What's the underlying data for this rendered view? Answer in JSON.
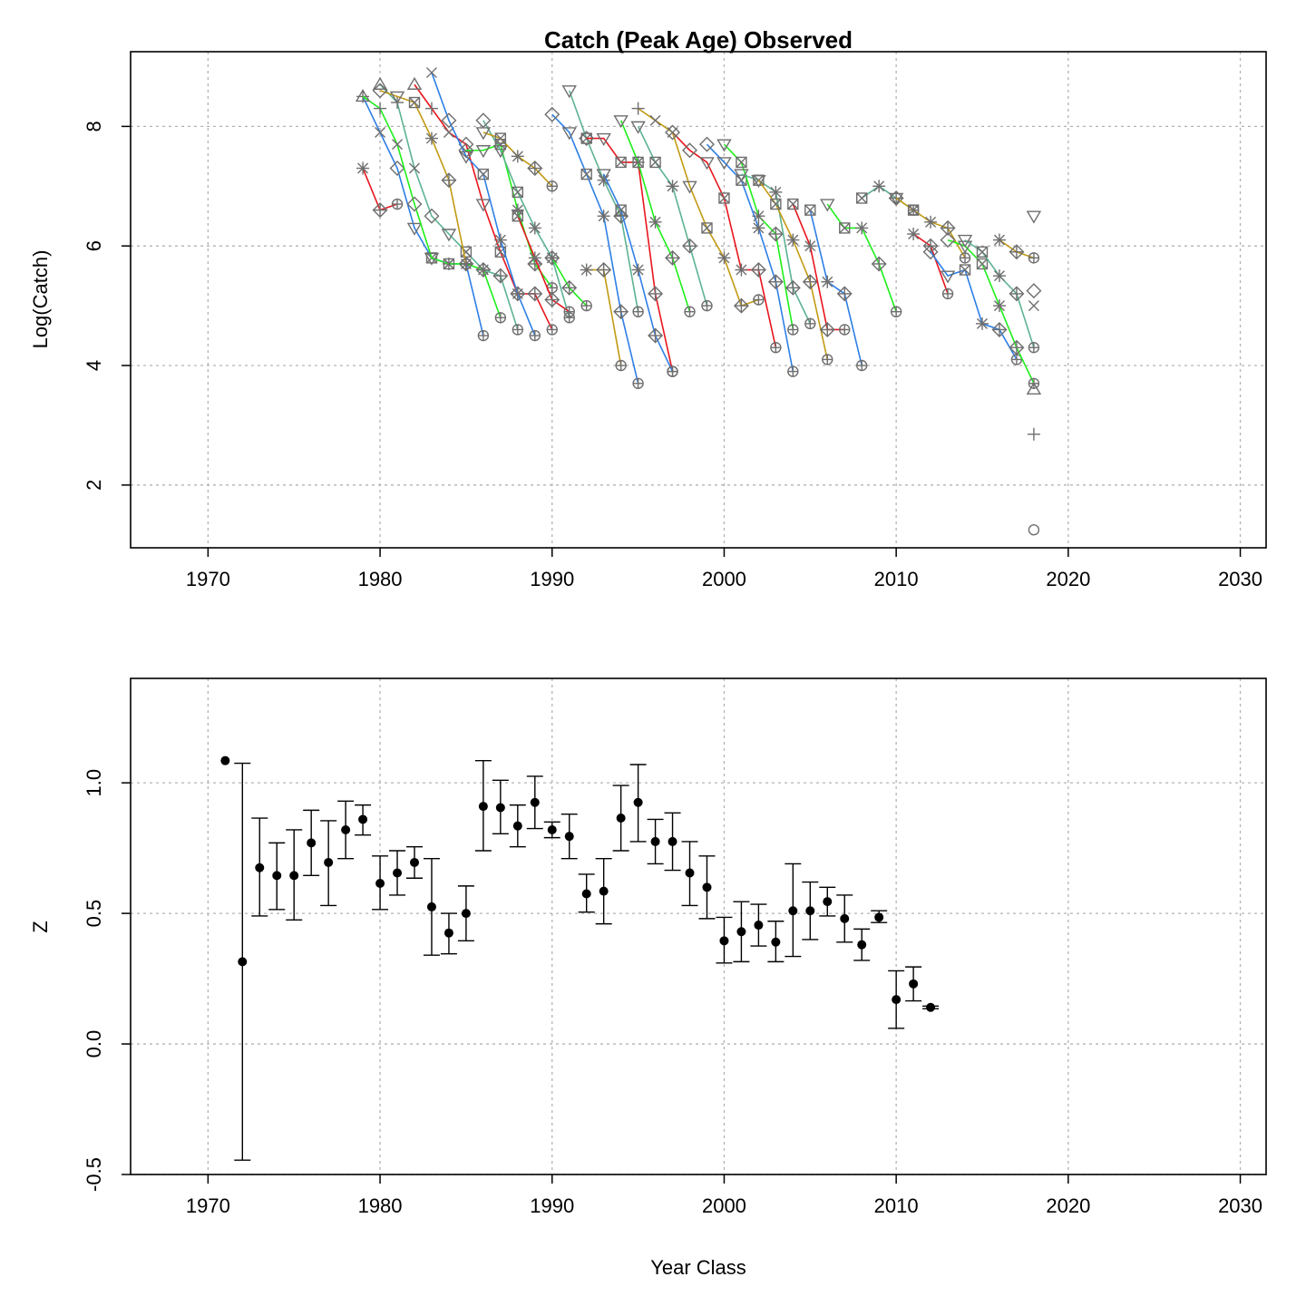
{
  "colors": {
    "series": [
      "#e8151c",
      "#2e7fe6",
      "#1ef01a",
      "#5db391",
      "#c29a12"
    ],
    "marker": "#6e6e6e",
    "point": "#000000"
  },
  "chart_data": [
    {
      "type": "line",
      "title": "Catch (Peak Age) Observed",
      "xlabel": "",
      "ylabel": "Log(Catch)",
      "xlim": [
        1965.5,
        2031.5
      ],
      "ylim": [
        0.95,
        9.25
      ],
      "xticks": [
        1970,
        1980,
        1990,
        2000,
        2010,
        2020,
        2030
      ],
      "yticks": [
        2,
        4,
        6,
        8
      ],
      "grid": true,
      "markers": [
        "circle",
        "triangle",
        "plus",
        "cross",
        "diamond",
        "down-triangle",
        "boxed-cross",
        "star",
        "plus-diamond",
        "circle-plus"
      ],
      "cohorts": [
        {
          "x": [
            1979,
            1980,
            1981
          ],
          "y": [
            7.3,
            6.6,
            6.7
          ]
        },
        {
          "x": [
            1979,
            1980,
            1981,
            1982,
            1983,
            1984,
            1985,
            1986
          ],
          "y": [
            8.5,
            7.9,
            7.3,
            6.3,
            5.8,
            5.7,
            5.7,
            4.5
          ]
        },
        {
          "x": [
            1979,
            1980,
            1981,
            1982,
            1983,
            1984,
            1985,
            1986,
            1987
          ],
          "y": [
            8.5,
            8.3,
            7.7,
            6.7,
            5.8,
            5.7,
            5.7,
            5.6,
            4.8
          ]
        },
        {
          "x": [
            1980,
            1981,
            1982,
            1983,
            1984,
            1985,
            1986,
            1987,
            1988
          ],
          "y": [
            8.7,
            8.4,
            7.3,
            6.5,
            6.2,
            5.9,
            5.6,
            5.5,
            4.6
          ]
        },
        {
          "x": [
            1980,
            1981,
            1982,
            1983,
            1984,
            1985
          ],
          "y": [
            8.6,
            8.5,
            8.4,
            7.8,
            7.1,
            5.7
          ]
        },
        {
          "x": [
            1982,
            1983,
            1984,
            1985,
            1986,
            1987,
            1988,
            1989,
            1990
          ],
          "y": [
            8.7,
            8.3,
            7.9,
            7.7,
            6.7,
            5.9,
            5.2,
            5.2,
            4.6
          ]
        },
        {
          "x": [
            1983,
            1984,
            1985,
            1986,
            1987,
            1988,
            1989
          ],
          "y": [
            8.9,
            8.1,
            7.5,
            7.2,
            6.1,
            5.2,
            4.5
          ]
        },
        {
          "x": [
            1985,
            1986,
            1987,
            1988,
            1989,
            1990
          ],
          "y": [
            7.6,
            7.6,
            7.7,
            6.6,
            5.7,
            5.3
          ]
        },
        {
          "x": [
            1986,
            1987,
            1988,
            1989,
            1990,
            1991
          ],
          "y": [
            8.1,
            7.6,
            6.9,
            6.3,
            5.8,
            4.8
          ]
        },
        {
          "x": [
            1986,
            1987,
            1988,
            1989,
            1990
          ],
          "y": [
            7.9,
            7.8,
            7.5,
            7.3,
            7.0
          ]
        },
        {
          "x": [
            1988,
            1989,
            1990,
            1991
          ],
          "y": [
            6.5,
            5.8,
            5.1,
            4.9
          ]
        },
        {
          "x": [
            1990,
            1991,
            1992,
            1993,
            1994,
            1995
          ],
          "y": [
            8.2,
            7.9,
            7.2,
            6.5,
            4.9,
            3.7
          ]
        },
        {
          "x": [
            1990,
            1991,
            1992
          ],
          "y": [
            5.8,
            5.3,
            5.0
          ]
        },
        {
          "x": [
            1991,
            1992,
            1993,
            1994,
            1995
          ],
          "y": [
            8.6,
            7.8,
            7.1,
            6.5,
            4.9
          ]
        },
        {
          "x": [
            1992,
            1993,
            1994
          ],
          "y": [
            5.6,
            5.6,
            4.0
          ]
        },
        {
          "x": [
            1992,
            1993,
            1994,
            1995,
            1996,
            1997
          ],
          "y": [
            7.8,
            7.8,
            7.4,
            7.4,
            5.2,
            3.9
          ]
        },
        {
          "x": [
            1993,
            1994,
            1995,
            1996,
            1997
          ],
          "y": [
            7.2,
            6.6,
            5.6,
            4.5,
            3.9
          ]
        },
        {
          "x": [
            1994,
            1995,
            1996,
            1997,
            1998
          ],
          "y": [
            8.1,
            7.4,
            6.4,
            5.8,
            4.9
          ]
        },
        {
          "x": [
            1995,
            1996,
            1997,
            1998,
            1999
          ],
          "y": [
            8.0,
            7.4,
            7.0,
            6.0,
            5.0
          ]
        },
        {
          "x": [
            1995,
            1996,
            1997,
            1998,
            1999,
            2000,
            2001,
            2002
          ],
          "y": [
            8.3,
            8.1,
            7.9,
            7.0,
            6.3,
            5.8,
            5.0,
            5.1
          ]
        },
        {
          "x": [
            1997,
            1998,
            1999,
            2000,
            2001,
            2002,
            2003
          ],
          "y": [
            7.9,
            7.6,
            7.4,
            6.8,
            5.6,
            5.6,
            4.3
          ]
        },
        {
          "x": [
            1999,
            2000,
            2001,
            2002,
            2003,
            2004
          ],
          "y": [
            7.7,
            7.4,
            7.1,
            6.3,
            5.4,
            3.9
          ]
        },
        {
          "x": [
            2000,
            2001,
            2002,
            2003,
            2004
          ],
          "y": [
            7.7,
            7.4,
            6.5,
            6.2,
            4.6
          ]
        },
        {
          "x": [
            2001,
            2002,
            2003,
            2004,
            2005
          ],
          "y": [
            7.2,
            7.1,
            6.9,
            5.3,
            4.7
          ]
        },
        {
          "x": [
            2002,
            2003,
            2004,
            2005,
            2006
          ],
          "y": [
            7.1,
            6.7,
            6.1,
            5.4,
            4.1
          ]
        },
        {
          "x": [
            2004,
            2005,
            2006,
            2007
          ],
          "y": [
            6.7,
            6.0,
            4.6,
            4.6
          ]
        },
        {
          "x": [
            2005,
            2006,
            2007,
            2008
          ],
          "y": [
            6.6,
            5.4,
            5.2,
            4.0
          ]
        },
        {
          "x": [
            2006,
            2007,
            2008,
            2009,
            2010
          ],
          "y": [
            6.7,
            6.3,
            6.3,
            5.7,
            4.9
          ]
        },
        {
          "x": [
            2008,
            2009,
            2010,
            2011
          ],
          "y": [
            6.8,
            7.0,
            6.8,
            6.6
          ]
        },
        {
          "x": [
            2010,
            2011,
            2012,
            2013,
            2014
          ],
          "y": [
            6.8,
            6.6,
            6.4,
            6.3,
            5.8
          ]
        },
        {
          "x": [
            2011,
            2012,
            2013
          ],
          "y": [
            6.2,
            6.0,
            5.2
          ]
        },
        {
          "x": [
            2012,
            2013,
            2014,
            2015,
            2016,
            2017
          ],
          "y": [
            5.9,
            5.5,
            5.6,
            4.7,
            4.6,
            4.1
          ]
        },
        {
          "x": [
            2013,
            2014,
            2015,
            2016,
            2017,
            2018
          ],
          "y": [
            6.1,
            6.0,
            5.7,
            5.0,
            4.3,
            3.7
          ]
        },
        {
          "x": [
            2014,
            2015,
            2016,
            2017,
            2018
          ],
          "y": [
            6.1,
            5.9,
            5.5,
            5.2,
            4.3
          ]
        },
        {
          "x": [
            2016,
            2017,
            2018
          ],
          "y": [
            6.1,
            5.9,
            5.8
          ]
        }
      ],
      "last_year_points": {
        "x": 2018,
        "y": [
          1.25,
          2.85,
          3.6,
          5.0,
          5.25,
          6.5
        ]
      }
    },
    {
      "type": "scatter",
      "title": "",
      "xlabel": "Year Class",
      "ylabel": "Z",
      "xlim": [
        1965.5,
        2031.5
      ],
      "ylim": [
        -0.5,
        1.4
      ],
      "xticks": [
        1970,
        1980,
        1990,
        2000,
        2010,
        2020,
        2030
      ],
      "yticks": [
        -0.5,
        0.0,
        0.5,
        1.0
      ],
      "ytick_labels": [
        "-0.5",
        "0.0",
        "0.5",
        "1.0"
      ],
      "grid": true,
      "points": [
        {
          "x": 1971,
          "y": 1.085
        },
        {
          "x": 1972,
          "y": 0.315,
          "lo": -0.445,
          "hi": 1.075
        },
        {
          "x": 1973,
          "y": 0.675,
          "lo": 0.49,
          "hi": 0.865
        },
        {
          "x": 1974,
          "y": 0.645,
          "lo": 0.515,
          "hi": 0.77
        },
        {
          "x": 1975,
          "y": 0.645,
          "lo": 0.475,
          "hi": 0.82
        },
        {
          "x": 1976,
          "y": 0.77,
          "lo": 0.645,
          "hi": 0.895
        },
        {
          "x": 1977,
          "y": 0.695,
          "lo": 0.53,
          "hi": 0.855
        },
        {
          "x": 1978,
          "y": 0.82,
          "lo": 0.71,
          "hi": 0.93
        },
        {
          "x": 1979,
          "y": 0.86,
          "lo": 0.8,
          "hi": 0.915
        },
        {
          "x": 1980,
          "y": 0.615,
          "lo": 0.515,
          "hi": 0.72
        },
        {
          "x": 1981,
          "y": 0.655,
          "lo": 0.57,
          "hi": 0.74
        },
        {
          "x": 1982,
          "y": 0.695,
          "lo": 0.635,
          "hi": 0.755
        },
        {
          "x": 1983,
          "y": 0.525,
          "lo": 0.34,
          "hi": 0.71
        },
        {
          "x": 1984,
          "y": 0.425,
          "lo": 0.345,
          "hi": 0.5
        },
        {
          "x": 1985,
          "y": 0.5,
          "lo": 0.395,
          "hi": 0.605
        },
        {
          "x": 1986,
          "y": 0.91,
          "lo": 0.74,
          "hi": 1.085
        },
        {
          "x": 1987,
          "y": 0.905,
          "lo": 0.805,
          "hi": 1.01
        },
        {
          "x": 1988,
          "y": 0.835,
          "lo": 0.755,
          "hi": 0.915
        },
        {
          "x": 1989,
          "y": 0.925,
          "lo": 0.825,
          "hi": 1.025
        },
        {
          "x": 1990,
          "y": 0.82,
          "lo": 0.79,
          "hi": 0.85
        },
        {
          "x": 1991,
          "y": 0.795,
          "lo": 0.71,
          "hi": 0.88
        },
        {
          "x": 1992,
          "y": 0.575,
          "lo": 0.505,
          "hi": 0.65
        },
        {
          "x": 1993,
          "y": 0.585,
          "lo": 0.46,
          "hi": 0.71
        },
        {
          "x": 1994,
          "y": 0.865,
          "lo": 0.74,
          "hi": 0.99
        },
        {
          "x": 1995,
          "y": 0.925,
          "lo": 0.775,
          "hi": 1.07
        },
        {
          "x": 1996,
          "y": 0.775,
          "lo": 0.69,
          "hi": 0.86
        },
        {
          "x": 1997,
          "y": 0.775,
          "lo": 0.665,
          "hi": 0.885
        },
        {
          "x": 1998,
          "y": 0.655,
          "lo": 0.53,
          "hi": 0.775
        },
        {
          "x": 1999,
          "y": 0.6,
          "lo": 0.48,
          "hi": 0.72
        },
        {
          "x": 2000,
          "y": 0.395,
          "lo": 0.31,
          "hi": 0.485
        },
        {
          "x": 2001,
          "y": 0.43,
          "lo": 0.315,
          "hi": 0.545
        },
        {
          "x": 2002,
          "y": 0.455,
          "lo": 0.375,
          "hi": 0.535
        },
        {
          "x": 2003,
          "y": 0.39,
          "lo": 0.315,
          "hi": 0.47
        },
        {
          "x": 2004,
          "y": 0.51,
          "lo": 0.335,
          "hi": 0.69
        },
        {
          "x": 2005,
          "y": 0.51,
          "lo": 0.4,
          "hi": 0.62
        },
        {
          "x": 2006,
          "y": 0.545,
          "lo": 0.49,
          "hi": 0.6
        },
        {
          "x": 2007,
          "y": 0.48,
          "lo": 0.39,
          "hi": 0.57
        },
        {
          "x": 2008,
          "y": 0.38,
          "lo": 0.32,
          "hi": 0.44
        },
        {
          "x": 2009,
          "y": 0.485,
          "lo": 0.465,
          "hi": 0.51
        },
        {
          "x": 2010,
          "y": 0.17,
          "lo": 0.06,
          "hi": 0.28
        },
        {
          "x": 2011,
          "y": 0.23,
          "lo": 0.165,
          "hi": 0.295
        },
        {
          "x": 2012,
          "y": 0.14,
          "lo": 0.135,
          "hi": 0.145
        }
      ]
    }
  ]
}
